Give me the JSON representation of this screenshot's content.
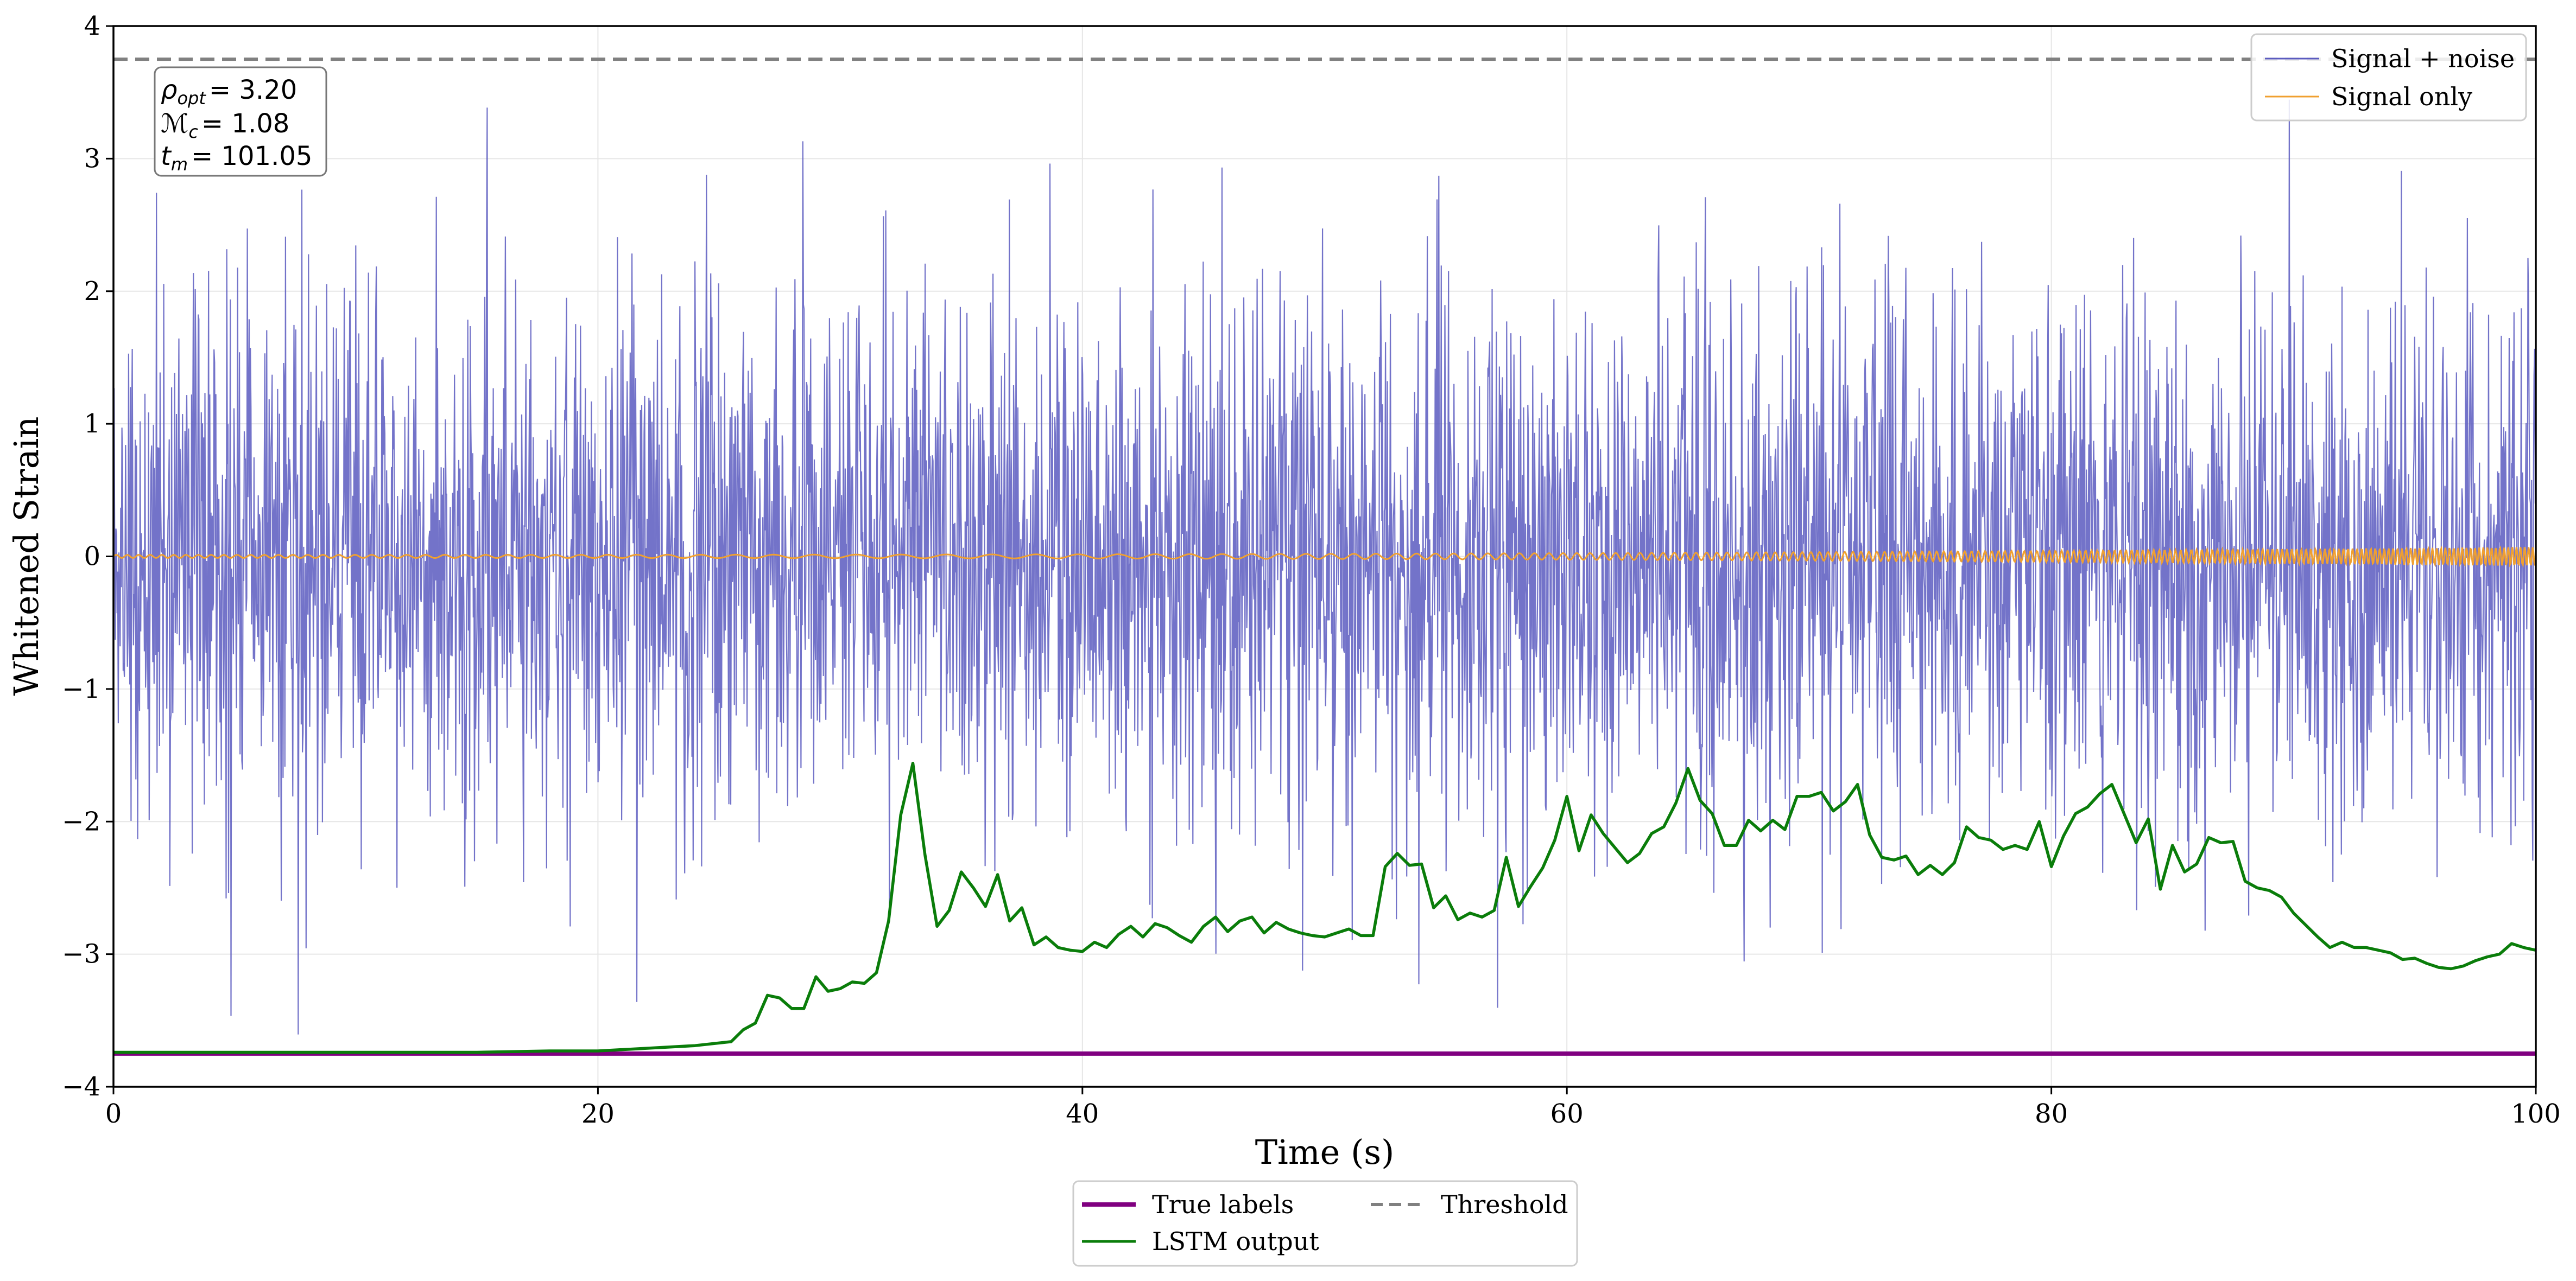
{
  "chart_data": {
    "type": "line",
    "xlabel": "Time (s)",
    "ylabel": "Whitened Strain",
    "xlim": [
      0,
      100
    ],
    "ylim": [
      -4,
      4
    ],
    "x_ticks": [
      0,
      20,
      40,
      60,
      80,
      100
    ],
    "x_tick_labels": [
      "0",
      "20",
      "40",
      "60",
      "80",
      "100"
    ],
    "y_ticks": [
      -4,
      -3,
      -2,
      -1,
      0,
      1,
      2,
      3,
      4
    ],
    "y_tick_labels": [
      "−4",
      "−3",
      "−2",
      "−1",
      "0",
      "1",
      "2",
      "3",
      "4"
    ],
    "grid": true,
    "threshold": 3.75,
    "true_label_level": -3.75,
    "annotation": {
      "rho_label": "ρ",
      "rho_sub": "opt",
      "rho_value": "= 3.20",
      "mc_label": "ℳ",
      "mc_sub": "c",
      "mc_value": "= 1.08",
      "tm_label": "t",
      "tm_sub": "m",
      "tm_value": "= 101.05"
    },
    "legend_upper": {
      "placement": "top-right",
      "entries": [
        "Signal + noise",
        "Signal only"
      ]
    },
    "legend_lower": {
      "placement": "below-plot",
      "entries": [
        "True labels",
        "LSTM output",
        "Threshold"
      ]
    },
    "colors": {
      "signal_noise": "#5b5bbf",
      "signal_only": "#f0a030",
      "true_labels": "#800080",
      "lstm": "#0a7d0a",
      "threshold": "#808080"
    },
    "series": [
      {
        "name": "LSTM output",
        "x": [
          0,
          5,
          10,
          15,
          18,
          20,
          22,
          24,
          25.5,
          26,
          26.5,
          27,
          27.5,
          28,
          28.5,
          29,
          29.5,
          30,
          30.5,
          31,
          31.5,
          32,
          32.5,
          33,
          33.5,
          34,
          34.5,
          35,
          35.5,
          36,
          36.5,
          37,
          37.5,
          38,
          38.5,
          39,
          39.5,
          40,
          40.5,
          41,
          41.5,
          42,
          42.5,
          43,
          43.5,
          44,
          44.5,
          45,
          45.5,
          46,
          46.5,
          47,
          47.5,
          48,
          48.5,
          49,
          49.5,
          50,
          50.5,
          51,
          51.5,
          52,
          52.5,
          53,
          53.5,
          54,
          54.5,
          55,
          55.5,
          56,
          56.5,
          57,
          57.5,
          58,
          58.5,
          59,
          59.5,
          60,
          60.5,
          61,
          61.5,
          62,
          62.5,
          63,
          63.5,
          64,
          64.5,
          65,
          65.5,
          66,
          66.5,
          67,
          67.5,
          68,
          68.5,
          69,
          69.5,
          70,
          70.5,
          71,
          71.5,
          72,
          72.5,
          73,
          73.5,
          74,
          74.5,
          75,
          75.5,
          76,
          76.5,
          77,
          77.5,
          78,
          78.5,
          79,
          79.5,
          80,
          80.5,
          81,
          81.5,
          82,
          82.5,
          83,
          83.5,
          84,
          84.5,
          85,
          85.5,
          86,
          86.5,
          87,
          87.5,
          88,
          88.5,
          89,
          89.5,
          90,
          90.5,
          91,
          91.5,
          92,
          92.5,
          93,
          93.5,
          94,
          94.5,
          95,
          95.5,
          96,
          96.5,
          97,
          97.5,
          98,
          98.5,
          99,
          99.5,
          100
        ],
        "values": [
          -3.74,
          -3.74,
          -3.74,
          -3.74,
          -3.73,
          -3.73,
          -3.71,
          -3.69,
          -3.66,
          -3.57,
          -3.52,
          -3.31,
          -3.33,
          -3.41,
          -3.41,
          -3.17,
          -3.28,
          -3.26,
          -3.21,
          -3.22,
          -3.14,
          -2.75,
          -1.95,
          -1.56,
          -2.25,
          -2.79,
          -2.67,
          -2.38,
          -2.5,
          -2.64,
          -2.4,
          -2.75,
          -2.65,
          -2.93,
          -2.87,
          -2.95,
          -2.97,
          -2.98,
          -2.91,
          -2.95,
          -2.85,
          -2.79,
          -2.87,
          -2.77,
          -2.8,
          -2.86,
          -2.91,
          -2.79,
          -2.72,
          -2.83,
          -2.75,
          -2.72,
          -2.84,
          -2.76,
          -2.81,
          -2.84,
          -2.86,
          -2.87,
          -2.84,
          -2.81,
          -2.86,
          -2.86,
          -2.34,
          -2.24,
          -2.33,
          -2.32,
          -2.65,
          -2.56,
          -2.74,
          -2.69,
          -2.72,
          -2.67,
          -2.27,
          -2.64,
          -2.49,
          -2.35,
          -2.14,
          -1.81,
          -2.22,
          -1.95,
          -2.09,
          -2.2,
          -2.31,
          -2.24,
          -2.09,
          -2.04,
          -1.86,
          -1.6,
          -1.84,
          -1.94,
          -2.18,
          -2.18,
          -1.99,
          -2.07,
          -1.99,
          -2.06,
          -1.81,
          -1.81,
          -1.78,
          -1.92,
          -1.85,
          -1.72,
          -2.1,
          -2.27,
          -2.29,
          -2.26,
          -2.4,
          -2.33,
          -2.4,
          -2.31,
          -2.04,
          -2.12,
          -2.14,
          -2.21,
          -2.18,
          -2.21,
          -2.0,
          -2.34,
          -2.11,
          -1.94,
          -1.89,
          -1.79,
          -1.72,
          -1.94,
          -2.16,
          -1.98,
          -2.51,
          -2.18,
          -2.38,
          -2.32,
          -2.12,
          -2.16,
          -2.15,
          -2.45,
          -2.5,
          -2.52,
          -2.57,
          -2.69,
          -2.78,
          -2.87,
          -2.95,
          -2.91,
          -2.95,
          -2.95,
          -2.97,
          -2.99,
          -3.04,
          -3.03,
          -3.07,
          -3.1,
          -3.11,
          -3.09,
          -3.05,
          -3.02,
          -3.0,
          -2.92,
          -2.95,
          -2.97
        ]
      },
      {
        "name": "True labels",
        "x": [
          0,
          100
        ],
        "values": [
          -3.75,
          -3.75
        ]
      }
    ]
  }
}
